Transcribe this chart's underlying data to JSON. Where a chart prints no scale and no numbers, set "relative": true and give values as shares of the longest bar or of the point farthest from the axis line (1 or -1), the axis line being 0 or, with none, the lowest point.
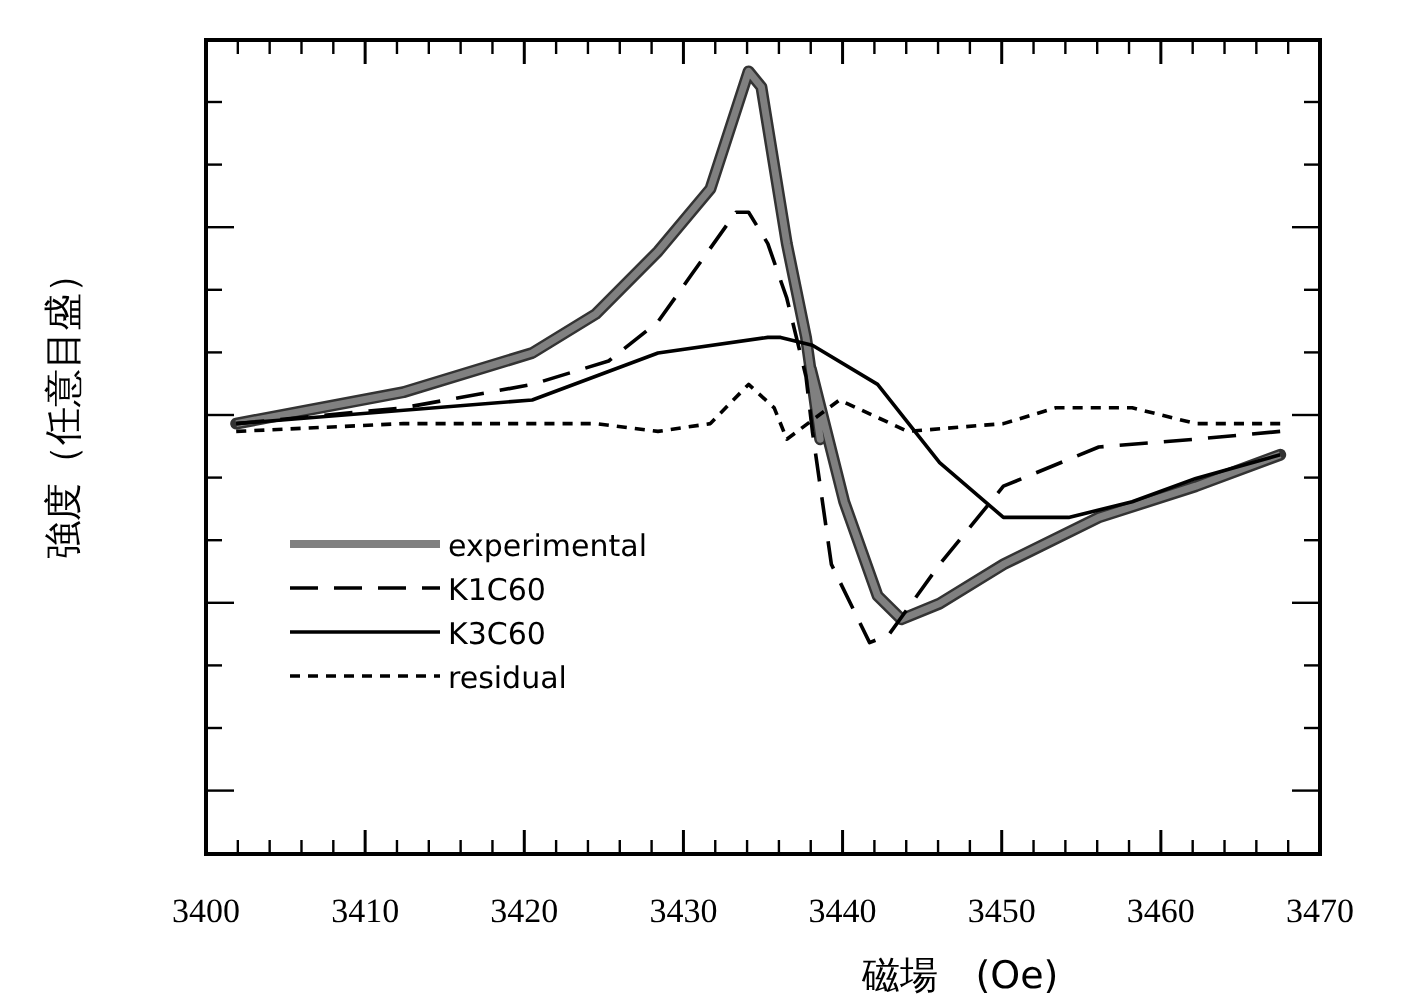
{
  "chart_data": {
    "type": "line",
    "xlabel": "磁場　(Oe)",
    "ylabel": "強度（任意目盛）",
    "relative": true,
    "legend": "bottom left",
    "xlim": [
      3400,
      3470
    ],
    "xticks": [
      3400,
      3410,
      3420,
      3430,
      3440,
      3450,
      3460,
      3470
    ],
    "series": [
      {
        "name": "experimental",
        "color": "#808080",
        "line_style": "solid",
        "x": [
          3401.9,
          3412.4,
          3420.5,
          3424.5,
          3428.4,
          3431.7,
          3434.1,
          3434.9,
          3436.5,
          3437.7,
          3438.6,
          3438.0,
          3440.1,
          3442.2,
          3443.7,
          3446.1,
          3450.1,
          3456.1,
          3462.2,
          3467.5
        ],
        "values": [
          0.55,
          0.59,
          0.64,
          0.69,
          0.77,
          0.85,
          1.0,
          0.98,
          0.78,
          0.66,
          0.53,
          0.62,
          0.45,
          0.33,
          0.3,
          0.32,
          0.37,
          0.43,
          0.47,
          0.51
        ]
      },
      {
        "name": "K1C60",
        "color": "#000000",
        "line_style": "dashed",
        "x": [
          3401.9,
          3412.4,
          3420.5,
          3425.3,
          3428.4,
          3430.5,
          3433.3,
          3434.1,
          3435.3,
          3436.5,
          3437.7,
          3438.1,
          3439.3,
          3441.7,
          3442.9,
          3446.1,
          3450.1,
          3456.1,
          3462.2,
          3467.5
        ],
        "values": [
          0.55,
          0.57,
          0.6,
          0.63,
          0.68,
          0.74,
          0.82,
          0.82,
          0.78,
          0.71,
          0.61,
          0.54,
          0.37,
          0.27,
          0.28,
          0.37,
          0.47,
          0.52,
          0.53,
          0.54
        ]
      },
      {
        "name": "K3C60",
        "color": "#000000",
        "line_style": "solid",
        "x": [
          3401.9,
          3420.5,
          3428.4,
          3435.3,
          3436.1,
          3438.1,
          3442.2,
          3446.1,
          3450.1,
          3454.2,
          3458.2,
          3462.2,
          3467.5
        ],
        "values": [
          0.55,
          0.58,
          0.64,
          0.66,
          0.66,
          0.65,
          0.6,
          0.5,
          0.43,
          0.43,
          0.45,
          0.48,
          0.51
        ]
      },
      {
        "name": "residual",
        "color": "#000000",
        "line_style": "dotted",
        "x": [
          3401.9,
          3412.4,
          3420.5,
          3424.5,
          3428.4,
          3431.7,
          3434.1,
          3435.7,
          3436.5,
          3439.8,
          3444.1,
          3450.1,
          3453.4,
          3458.2,
          3462.2,
          3467.5
        ],
        "values": [
          0.54,
          0.55,
          0.55,
          0.55,
          0.54,
          0.55,
          0.6,
          0.57,
          0.53,
          0.58,
          0.54,
          0.55,
          0.57,
          0.57,
          0.55,
          0.55
        ]
      }
    ]
  }
}
